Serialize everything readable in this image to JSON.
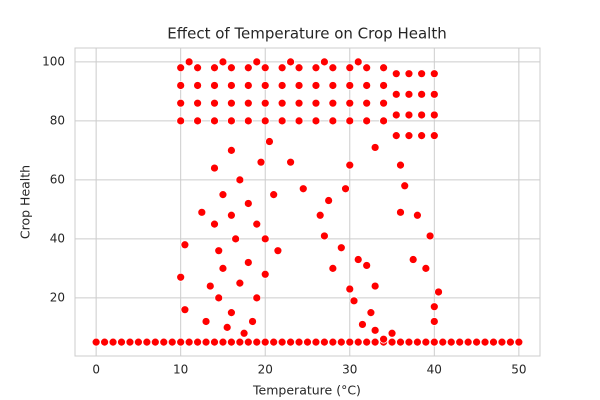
{
  "chart_data": {
    "type": "scatter",
    "title": "Effect of Temperature on Crop Health",
    "x_label": "Temperature (°C)",
    "y_label": "Crop Health",
    "xlim": [
      -2.5,
      52.5
    ],
    "ylim": [
      0.3,
      104.7
    ],
    "xticks": [
      0,
      10,
      20,
      30,
      40,
      50
    ],
    "yticks": [
      20,
      40,
      60,
      80,
      100
    ],
    "grid": true,
    "color": "#ff0000",
    "x": [
      0,
      1,
      2,
      3,
      4,
      5,
      6,
      7,
      8,
      9,
      10,
      11,
      12,
      13,
      14,
      15,
      16,
      17,
      18,
      19,
      20,
      21,
      22,
      23,
      24,
      25,
      26,
      27,
      28,
      29,
      30,
      31,
      32,
      33,
      34,
      35,
      36,
      37,
      38,
      39,
      40,
      41,
      42,
      43,
      44,
      45,
      46,
      47,
      48,
      49,
      50,
      10,
      10,
      10,
      10,
      12,
      12,
      12,
      12,
      14,
      14,
      14,
      14,
      16,
      16,
      16,
      16,
      18,
      18,
      18,
      18,
      20,
      20,
      20,
      20,
      22,
      22,
      22,
      22,
      24,
      24,
      24,
      24,
      26,
      26,
      26,
      26,
      28,
      28,
      28,
      28,
      30,
      30,
      30,
      30,
      32,
      32,
      32,
      32,
      34,
      34,
      34,
      34,
      11,
      15,
      19,
      23,
      27,
      31,
      35.5,
      35.5,
      35.5,
      35.5,
      37,
      37,
      37,
      37,
      38.5,
      38.5,
      38.5,
      38.5,
      40,
      40,
      40,
      40,
      10,
      10.5,
      10.5,
      12.5,
      13,
      13.5,
      14,
      14,
      14.5,
      14.5,
      15,
      15,
      15.5,
      16,
      16,
      16,
      16.5,
      17,
      17,
      17.5,
      18,
      18,
      18.5,
      19,
      19,
      19.5,
      20,
      20,
      20.5,
      21,
      21.5,
      23,
      24.5,
      26.5,
      27,
      27.5,
      28,
      29,
      29.5,
      30,
      30,
      30.5,
      31,
      31.5,
      32,
      32.5,
      33,
      33,
      34,
      35,
      36,
      36,
      36.5,
      37.5,
      38,
      39,
      39.5,
      40,
      40,
      40.5,
      33
    ],
    "y": [
      5,
      5,
      5,
      5,
      5,
      5,
      5,
      5,
      5,
      5,
      5,
      5,
      5,
      5,
      5,
      5,
      5,
      5,
      5,
      5,
      5,
      5,
      5,
      5,
      5,
      5,
      5,
      5,
      5,
      5,
      5,
      5,
      5,
      5,
      5,
      5,
      5,
      5,
      5,
      5,
      5,
      5,
      5,
      5,
      5,
      5,
      5,
      5,
      5,
      5,
      5,
      80,
      86,
      92,
      98,
      80,
      86,
      92,
      98,
      80,
      86,
      92,
      98,
      80,
      86,
      92,
      98,
      80,
      86,
      92,
      98,
      80,
      86,
      92,
      98,
      80,
      86,
      92,
      98,
      80,
      86,
      92,
      98,
      80,
      86,
      92,
      98,
      80,
      86,
      92,
      98,
      80,
      86,
      92,
      98,
      80,
      86,
      92,
      98,
      80,
      86,
      92,
      98,
      100,
      100,
      100,
      100,
      100,
      100,
      75,
      82,
      89,
      96,
      75,
      82,
      89,
      96,
      75,
      82,
      89,
      96,
      75,
      82,
      89,
      96,
      27,
      38,
      16,
      49,
      12,
      24,
      64,
      45,
      36,
      20,
      55,
      30,
      10,
      70,
      48,
      15,
      40,
      60,
      25,
      8,
      52,
      32,
      12,
      45,
      20,
      66,
      40,
      28,
      73,
      55,
      36,
      66,
      57,
      48,
      41,
      53,
      30,
      37,
      57,
      65,
      23,
      19,
      33,
      11,
      31,
      15,
      24,
      9,
      6,
      8,
      65,
      49,
      58,
      33,
      48,
      30,
      41,
      17,
      12,
      22,
      71
    ]
  }
}
